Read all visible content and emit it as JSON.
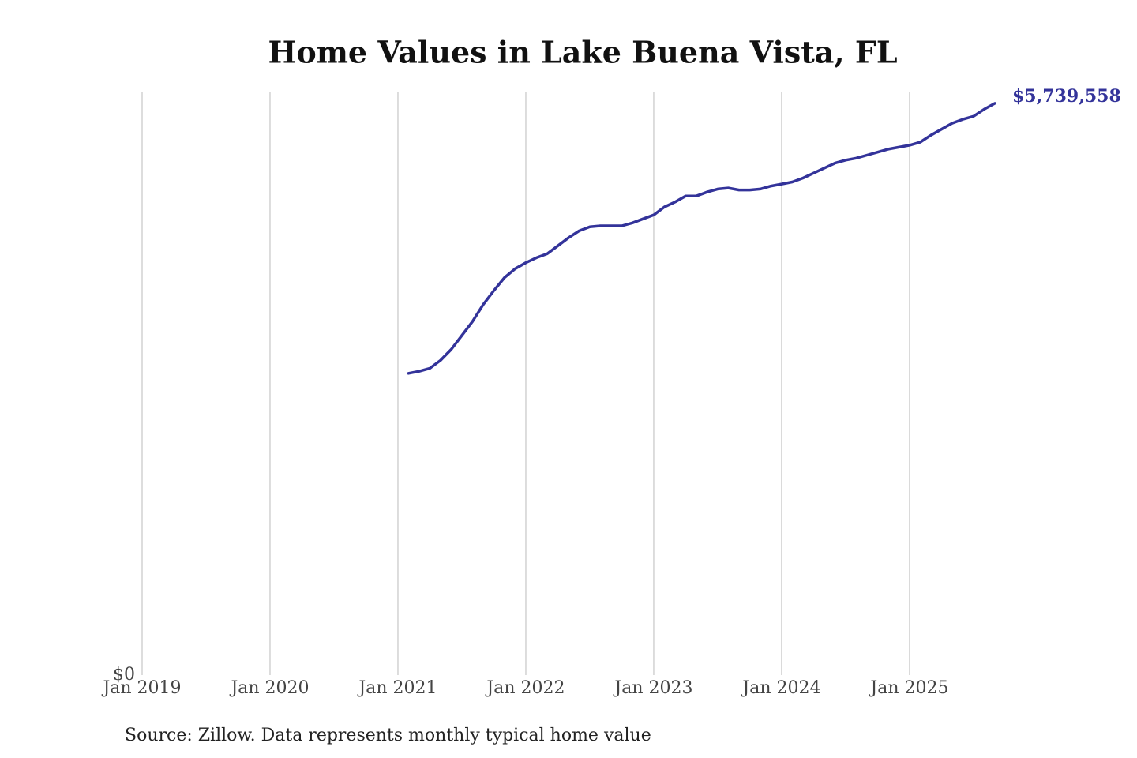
{
  "chart_data": {
    "type": "line",
    "title": "Home Values in Lake Buena Vista, FL",
    "note": "Source: Zillow. Data represents monthly typical home value",
    "x": [
      2021.083,
      2021.167,
      2021.25,
      2021.333,
      2021.417,
      2021.5,
      2021.583,
      2021.667,
      2021.75,
      2021.833,
      2021.917,
      2022.0,
      2022.083,
      2022.167,
      2022.25,
      2022.333,
      2022.417,
      2022.5,
      2022.583,
      2022.667,
      2022.75,
      2022.833,
      2022.917,
      2023.0,
      2023.083,
      2023.167,
      2023.25,
      2023.333,
      2023.417,
      2023.5,
      2023.583,
      2023.667,
      2023.75,
      2023.833,
      2023.917,
      2024.0,
      2024.083,
      2024.167,
      2024.25,
      2024.333,
      2024.417,
      2024.5,
      2024.583,
      2024.667,
      2024.75,
      2024.833,
      2024.917,
      2025.0,
      2025.083,
      2025.167,
      2025.25,
      2025.333,
      2025.417,
      2025.5,
      2025.583,
      2025.667
    ],
    "series": [
      {
        "color": "#33339a",
        "values": [
          3030000,
          3050000,
          3080000,
          3160000,
          3270000,
          3410000,
          3550000,
          3720000,
          3860000,
          3990000,
          4080000,
          4140000,
          4190000,
          4230000,
          4310000,
          4390000,
          4460000,
          4500000,
          4510000,
          4510000,
          4510000,
          4540000,
          4580000,
          4620000,
          4700000,
          4750000,
          4810000,
          4810000,
          4850000,
          4880000,
          4890000,
          4870000,
          4870000,
          4880000,
          4910000,
          4930000,
          4950000,
          4990000,
          5040000,
          5090000,
          5140000,
          5170000,
          5190000,
          5220000,
          5250000,
          5280000,
          5300000,
          5320000,
          5350000,
          5420000,
          5480000,
          5540000,
          5580000,
          5610000,
          5680000,
          5739558
        ],
        "last_label": "$5,739,558"
      }
    ],
    "xlim": [
      2019,
      2025.667
    ],
    "xticks": [
      {
        "value": 2019,
        "label": "Jan 2019"
      },
      {
        "value": 2020,
        "label": "Jan 2020"
      },
      {
        "value": 2021,
        "label": "Jan 2021"
      },
      {
        "value": 2022,
        "label": "Jan 2022"
      },
      {
        "value": 2023,
        "label": "Jan 2023"
      },
      {
        "value": 2024,
        "label": "Jan 2024"
      },
      {
        "value": 2025,
        "label": "Jan 2025"
      }
    ],
    "ylim": [
      0,
      5850000
    ],
    "yticks": [
      {
        "value": 0,
        "label": "$0"
      }
    ],
    "grid": true
  }
}
